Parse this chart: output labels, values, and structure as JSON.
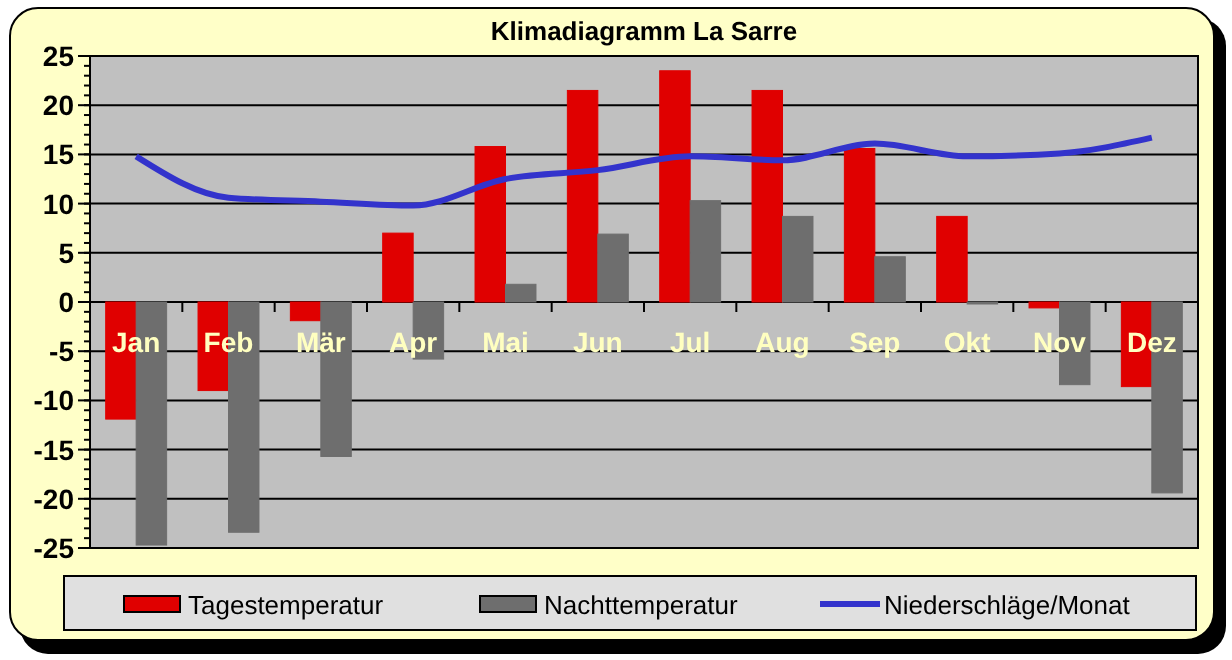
{
  "chart_data": {
    "type": "bar",
    "title": "Klimadiagramm La Sarre",
    "categories": [
      "Jan",
      "Feb",
      "Mär",
      "Apr",
      "Mai",
      "Jun",
      "Jul",
      "Aug",
      "Sep",
      "Okt",
      "Nov",
      "Dez"
    ],
    "series": [
      {
        "name": "Tagestemperatur",
        "color": "#e00000",
        "values": [
          -11.9,
          -9.0,
          -1.9,
          7.0,
          15.8,
          21.5,
          23.5,
          21.5,
          15.6,
          8.7,
          -0.6,
          -8.6
        ]
      },
      {
        "name": "Nachttemperatur",
        "color": "#6e6e6e",
        "values": [
          -24.7,
          -23.4,
          -15.7,
          -5.8,
          1.8,
          6.9,
          10.3,
          8.7,
          4.6,
          -0.2,
          -8.4,
          -19.4
        ]
      },
      {
        "name": "Niederschläge/Monat",
        "type": "line",
        "color": "#3333cc",
        "values": [
          14.8,
          10.6,
          10.2,
          9.8,
          12.5,
          13.4,
          14.8,
          14.4,
          16.1,
          14.8,
          15.1,
          16.7
        ]
      }
    ],
    "ylim": [
      -25,
      25
    ],
    "yticks": [
      -25,
      -20,
      -15,
      -10,
      -5,
      0,
      5,
      10,
      15,
      20,
      25
    ],
    "grid": "y",
    "legend": "bottom",
    "marker": "none"
  }
}
